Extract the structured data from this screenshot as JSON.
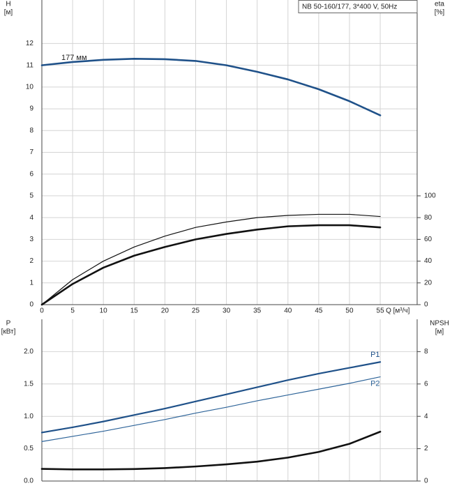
{
  "chart_data": [
    {
      "type": "line",
      "legend_text": "NB 50-160/177, 3*400 V, 50Hz",
      "y_label": [
        "H",
        "[м]"
      ],
      "y2_label": [
        "eta",
        "[%]"
      ],
      "x_label": "Q [м³/ч]",
      "annotations": [
        "177 мм"
      ],
      "x": [
        0,
        5,
        10,
        15,
        20,
        25,
        30,
        35,
        40,
        45,
        50,
        55
      ],
      "xlim": [
        0,
        61
      ],
      "xticks": [
        0,
        5,
        10,
        15,
        20,
        25,
        30,
        35,
        40,
        45,
        50,
        55
      ],
      "ylim": [
        0,
        14
      ],
      "yticks": [
        0,
        1,
        2,
        3,
        4,
        5,
        6,
        7,
        8,
        9,
        10,
        11,
        12
      ],
      "y2lim": [
        0,
        280
      ],
      "y2ticks": [
        0,
        20,
        40,
        60,
        80,
        100
      ],
      "grid": true,
      "series": [
        {
          "color": "#1f5189",
          "values": [
            11.0,
            11.15,
            11.25,
            11.3,
            11.28,
            11.2,
            11.0,
            10.7,
            10.35,
            9.9,
            9.35,
            8.7
          ]
        },
        {
          "color": "#111111",
          "axis": "y2",
          "values": [
            0,
            23,
            40,
            53,
            63,
            71,
            76,
            80,
            82,
            83,
            83,
            81
          ]
        },
        {
          "color": "#111111",
          "axis": "y2",
          "values": [
            0,
            19,
            34,
            45,
            53,
            60,
            65,
            69,
            72,
            73,
            73,
            71
          ]
        }
      ]
    },
    {
      "type": "line",
      "y_label": [
        "P",
        "[кВт]"
      ],
      "y2_label": [
        "NPSH",
        "[м]"
      ],
      "x": [
        0,
        5,
        10,
        15,
        20,
        25,
        30,
        35,
        40,
        45,
        50,
        55
      ],
      "xlim": [
        0,
        61
      ],
      "xticks": [
        0,
        5,
        10,
        15,
        20,
        25,
        30,
        35,
        40,
        45,
        50,
        55
      ],
      "ylim": [
        0,
        2.5
      ],
      "yticks": [
        {
          "value": 0,
          "label": "0.0"
        },
        0.5,
        {
          "value": 1,
          "label": "1.0"
        },
        1.5,
        {
          "value": 2,
          "label": "2.0"
        }
      ],
      "y2lim": [
        0,
        10
      ],
      "y2ticks": [
        0,
        2,
        4,
        6,
        8
      ],
      "grid": true,
      "series": [
        {
          "name": "P1",
          "color": "#1f5189",
          "values": [
            0.75,
            0.83,
            0.92,
            1.02,
            1.12,
            1.23,
            1.34,
            1.45,
            1.56,
            1.66,
            1.75,
            1.84
          ]
        },
        {
          "name": "P2",
          "color": "#2e6499",
          "values": [
            0.61,
            0.69,
            0.77,
            0.86,
            0.95,
            1.05,
            1.14,
            1.24,
            1.33,
            1.42,
            1.51,
            1.61
          ]
        },
        {
          "color": "#111111",
          "axis": "y2",
          "values": [
            0.75,
            0.72,
            0.72,
            0.74,
            0.8,
            0.9,
            1.03,
            1.2,
            1.45,
            1.8,
            2.3,
            3.05
          ]
        }
      ]
    }
  ]
}
